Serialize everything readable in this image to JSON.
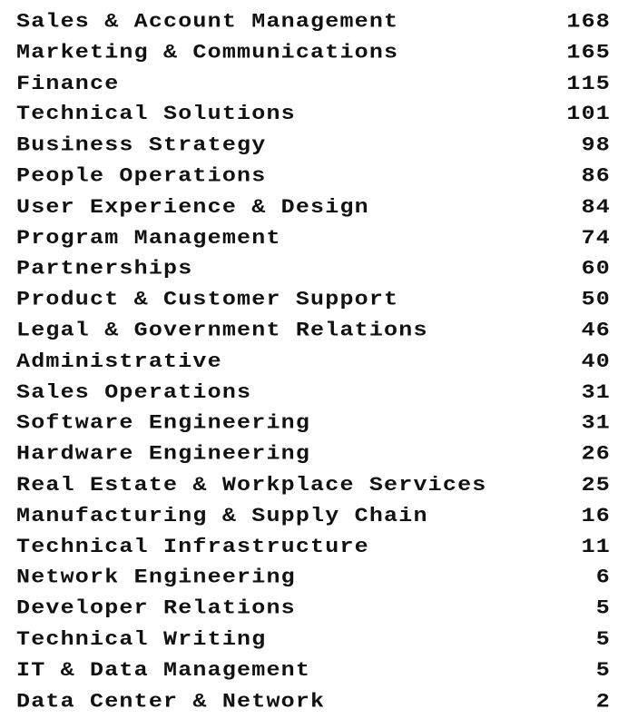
{
  "rows": [
    {
      "name": "Sales & Account Management",
      "count": "168"
    },
    {
      "name": "Marketing & Communications",
      "count": "165"
    },
    {
      "name": "Finance",
      "count": "115"
    },
    {
      "name": "Technical Solutions",
      "count": "101"
    },
    {
      "name": "Business Strategy",
      "count": "98"
    },
    {
      "name": "People Operations",
      "count": "86"
    },
    {
      "name": "User Experience & Design",
      "count": "84"
    },
    {
      "name": "Program Management",
      "count": "74"
    },
    {
      "name": "Partnerships",
      "count": "60"
    },
    {
      "name": "Product & Customer Support",
      "count": "50"
    },
    {
      "name": "Legal & Government Relations",
      "count": "46"
    },
    {
      "name": "Administrative",
      "count": "40"
    },
    {
      "name": "Sales Operations",
      "count": "31"
    },
    {
      "name": "Software Engineering",
      "count": "31"
    },
    {
      "name": "Hardware Engineering",
      "count": "26"
    },
    {
      "name": "Real Estate & Workplace Services",
      "count": "25"
    },
    {
      "name": "Manufacturing & Supply Chain",
      "count": "16"
    },
    {
      "name": "Technical Infrastructure",
      "count": "11"
    },
    {
      "name": "Network Engineering",
      "count": "6"
    },
    {
      "name": "Developer Relations",
      "count": "5"
    },
    {
      "name": "Technical Writing",
      "count": "5"
    },
    {
      "name": "IT & Data Management",
      "count": "5"
    },
    {
      "name": "Data Center & Network",
      "count": "2"
    }
  ]
}
